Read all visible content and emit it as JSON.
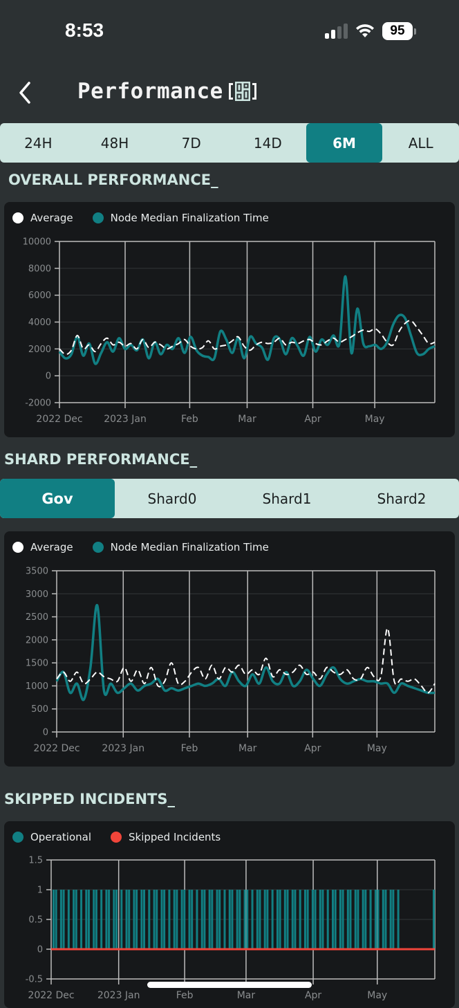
{
  "status_bar": {
    "time": "8:53",
    "battery": "95"
  },
  "header": {
    "title": "Performance",
    "back_icon": "chevron-left-icon",
    "title_icon": "dashboard-grid-icon"
  },
  "time_range": {
    "options": [
      "24H",
      "48H",
      "7D",
      "14D",
      "6M",
      "ALL"
    ],
    "selected": "6M"
  },
  "sections": {
    "overall": "OVERALL PERFORMANCE_",
    "shard": "SHARD PERFORMANCE_",
    "skipped": "SKIPPED INCIDENTS_"
  },
  "shard_tabs": {
    "options": [
      "Gov",
      "Shard0",
      "Shard1",
      "Shard2"
    ],
    "selected": "Gov"
  },
  "colors": {
    "accent": "#117f83",
    "average": "#ffffff",
    "skipped": "#f0453a",
    "bg": "#2c3133",
    "card": "#16181a",
    "segment": "#cde5e0"
  },
  "chart_data": [
    {
      "type": "line",
      "title": "Overall Performance",
      "legend": [
        "Average",
        "Node Median Finalization Time"
      ],
      "xlabel": "",
      "ylabel": "",
      "ylim": [
        -2000,
        10000
      ],
      "yticks": [
        "10000",
        "8000",
        "6000",
        "4000",
        "2000",
        "0",
        "-2000"
      ],
      "xticks": [
        "2022 Dec",
        "2023 Jan",
        "Feb",
        "Mar",
        "Apr",
        "May"
      ],
      "grid": true,
      "series": [
        {
          "name": "Average",
          "style": "dashed",
          "color": "#ffffff",
          "values": [
            2000,
            1600,
            1900,
            3000,
            2000,
            2300,
            1800,
            2400,
            2800,
            2300,
            2500,
            2200,
            2400,
            2000,
            2700,
            2100,
            2500,
            2300,
            2000,
            2200,
            2400,
            2700,
            2200,
            2000,
            2100,
            2600,
            2000,
            2200,
            2300,
            2600,
            2900,
            2200,
            1900,
            2300,
            2500,
            2400,
            2500,
            2800,
            2300,
            2500,
            2400,
            2600,
            2700,
            2400,
            2300,
            2600,
            2800,
            2500,
            2700,
            2900,
            3200,
            3400,
            3300,
            3500,
            3100,
            2500,
            2300,
            3300,
            3900,
            4100,
            3600,
            3000,
            2400,
            2500
          ]
        },
        {
          "name": "Node Median Finalization Time",
          "style": "solid",
          "color": "#117f83",
          "values": [
            1800,
            1300,
            1600,
            2900,
            1500,
            2400,
            900,
            1700,
            2500,
            1800,
            2800,
            2000,
            2300,
            1900,
            2700,
            1300,
            2500,
            1600,
            2300,
            2000,
            2800,
            1700,
            2900,
            1900,
            1500,
            1400,
            1300,
            3300,
            2700,
            1700,
            2800,
            1300,
            2900,
            2400,
            2100,
            1200,
            2800,
            2700,
            1600,
            2800,
            2200,
            1500,
            2900,
            1800,
            2700,
            2300,
            3000,
            2400,
            7400,
            1700,
            5000,
            2400,
            2200,
            2300,
            2000,
            2500,
            3800,
            4500,
            4300,
            3000,
            1700,
            1600,
            2000,
            2200
          ]
        }
      ]
    },
    {
      "type": "line",
      "title": "Shard Performance - Gov",
      "legend": [
        "Average",
        "Node Median Finalization Time"
      ],
      "xlabel": "",
      "ylabel": "",
      "ylim": [
        0,
        3500
      ],
      "yticks": [
        "3500",
        "3000",
        "2500",
        "2000",
        "1500",
        "1000",
        "500",
        "0"
      ],
      "xticks": [
        "2022 Dec",
        "2023 Jan",
        "Feb",
        "Mar",
        "Apr",
        "May"
      ],
      "grid": true,
      "series": [
        {
          "name": "Average",
          "style": "dashed",
          "color": "#ffffff",
          "values": [
            1150,
            1300,
            1100,
            1300,
            1050,
            1150,
            1300,
            1200,
            1150,
            1100,
            1400,
            1100,
            1350,
            1050,
            1400,
            1000,
            1100,
            1500,
            1050,
            1100,
            1300,
            1400,
            1150,
            1450,
            1150,
            1400,
            1300,
            1450,
            1250,
            1350,
            1250,
            1600,
            1200,
            1350,
            1250,
            1300,
            1450,
            1250,
            1300,
            1150,
            1400,
            1300,
            1250,
            1350,
            1150,
            1150,
            1400,
            1200,
            1200,
            2250,
            1100,
            1150,
            1100,
            1150,
            1000,
            850,
            1050
          ]
        },
        {
          "name": "Node Median Finalization Time",
          "style": "solid",
          "color": "#117f83",
          "values": [
            1100,
            1300,
            850,
            1050,
            700,
            1400,
            2750,
            900,
            1050,
            850,
            950,
            1050,
            900,
            1000,
            1050,
            1150,
            900,
            950,
            900,
            950,
            1000,
            1050,
            1000,
            1050,
            1150,
            1000,
            1300,
            1100,
            1000,
            1250,
            1050,
            1400,
            1100,
            1050,
            1300,
            1000,
            1100,
            1350,
            1150,
            1000,
            1250,
            1400,
            1150,
            1050,
            1100,
            1150,
            1100,
            1100,
            1050,
            1050,
            850,
            1050,
            1000,
            950,
            900,
            850,
            850
          ]
        }
      ]
    },
    {
      "type": "bar",
      "title": "Skipped Incidents",
      "legend": [
        "Operational",
        "Skipped Incidents"
      ],
      "xlabel": "",
      "ylabel": "",
      "ylim": [
        -0.5,
        1.5
      ],
      "yticks": [
        "1.5",
        "1",
        "0.5",
        "0",
        "-0.5"
      ],
      "xticks": [
        "2022 Dec",
        "2023 Jan",
        "Feb",
        "Mar",
        "Apr",
        "May"
      ],
      "grid": true,
      "series": [
        {
          "name": "Operational",
          "color": "#117f83",
          "note": "value 1 on most days Dec–mid May, gap until end of May, one final bar"
        },
        {
          "name": "Skipped Incidents",
          "color": "#f0453a",
          "values_constant": 0
        }
      ]
    }
  ]
}
